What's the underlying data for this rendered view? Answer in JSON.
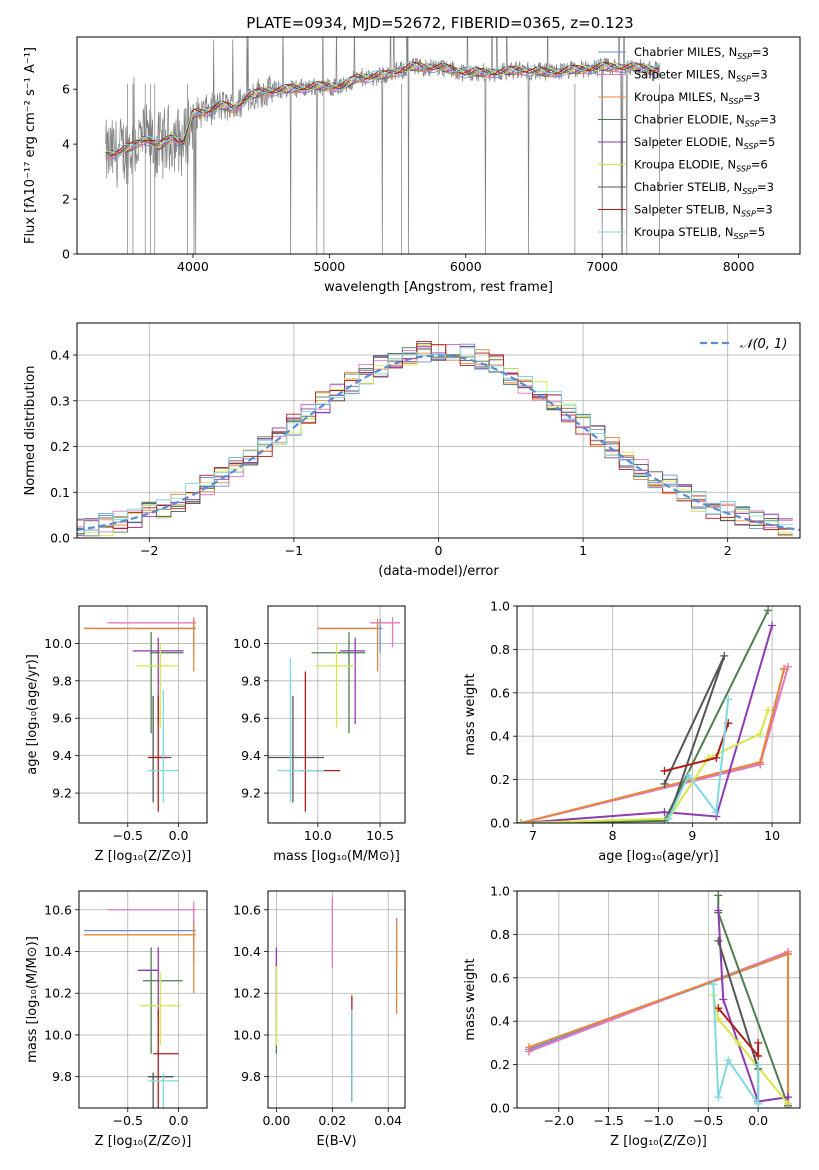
{
  "figure": {
    "title": "PLATE=0934, MJD=52672, FIBERID=0365, z=0.123"
  },
  "colors": {
    "Chabrier MILES": "#6b8fd6",
    "Salpeter MILES": "#e377c2",
    "Kroupa MILES": "#e6873a",
    "Chabrier ELODIE": "#4f7d4f",
    "Salpeter ELODIE": "#8e3ab0",
    "Kroupa ELODIE": "#d6e64a",
    "Chabrier STELIB": "#555555",
    "Salpeter STELIB": "#b01c1c",
    "Kroupa STELIB": "#7fd9e0",
    "data": "#7f7f7f",
    "gauss": "#5b8bd6"
  },
  "chart_data": [
    {
      "id": "spectrum",
      "type": "line",
      "title": "PLATE=0934, MJD=52672, FIBERID=0365, z=0.123",
      "xlabel": "wavelength [Angstrom, rest frame]",
      "ylabel": "Flux [fλ10⁻¹⁷ erg cm⁻² s⁻¹ A⁻¹]",
      "xlim": [
        3150,
        8450
      ],
      "ylim": [
        0,
        7.9
      ],
      "xticks": [
        4000,
        5000,
        6000,
        7000,
        8000
      ],
      "yticks": [
        0,
        2,
        4,
        6
      ],
      "legend_loc": "right",
      "legend": [
        "Chabrier MILES, N_SSP=3",
        "Salpeter MILES, N_SSP=3",
        "Kroupa MILES, N_SSP=3",
        "Chabrier ELODIE, N_SSP=3",
        "Salpeter ELODIE, N_SSP=5",
        "Kroupa ELODIE, N_SSP=6",
        "Chabrier STELIB, N_SSP=3",
        "Salpeter STELIB, N_SSP=3",
        "Kroupa STELIB, N_SSP=5"
      ],
      "continuum_x": [
        3360,
        3450,
        3550,
        3650,
        3750,
        3850,
        3930,
        4000,
        4100,
        4200,
        4300,
        4400,
        4500,
        4700,
        4900,
        5100,
        5200,
        5400,
        5600,
        5800,
        6000,
        6200,
        6400,
        6600,
        6800,
        7000,
        7200,
        7400
      ],
      "continuum_y": [
        3.6,
        3.7,
        3.9,
        4.2,
        3.9,
        4.3,
        4.0,
        5.1,
        5.2,
        5.4,
        5.3,
        5.7,
        5.9,
        6.0,
        6.1,
        6.1,
        6.4,
        6.5,
        6.8,
        6.8,
        6.6,
        6.6,
        6.7,
        6.6,
        6.7,
        6.8,
        6.8,
        6.7
      ]
    },
    {
      "id": "residuals",
      "type": "histogram",
      "xlabel": "(data-model)/error",
      "ylabel": "Normed distribution",
      "xlim": [
        -2.5,
        2.5
      ],
      "ylim": [
        0,
        0.47
      ],
      "xticks": [
        -2,
        -1,
        0,
        1,
        2
      ],
      "yticks": [
        0.0,
        0.1,
        0.2,
        0.3,
        0.4
      ],
      "grid": true,
      "legend_loc": "upper right",
      "gaussian_label": "𝒩(0, 1)"
    },
    {
      "id": "age-Z",
      "type": "errorbar",
      "xlabel": "Z [log₁₀(Z/Z⊙)]",
      "ylabel": "age  [log₁₀(age/yr)]",
      "xlim": [
        -0.98,
        0.28
      ],
      "ylim": [
        9.04,
        10.2
      ],
      "xticks": [
        -0.5,
        0.0
      ],
      "yticks": [
        9.2,
        9.4,
        9.6,
        9.8,
        10.0
      ],
      "grid": true,
      "points": [
        {
          "model": "Chabrier MILES",
          "x": 0.15,
          "y": 10.08,
          "x_lo": -0.93,
          "x_hi": 0.17,
          "y_lo": 9.95,
          "y_hi": 10.13
        },
        {
          "model": "Salpeter MILES",
          "x": 0.15,
          "y": 10.11,
          "x_lo": -0.7,
          "x_hi": 0.17,
          "y_lo": 9.98,
          "y_hi": 10.14
        },
        {
          "model": "Kroupa MILES",
          "x": 0.15,
          "y": 10.08,
          "x_lo": -0.93,
          "x_hi": 0.17,
          "y_lo": 9.85,
          "y_hi": 10.13
        },
        {
          "model": "Chabrier ELODIE",
          "x": -0.27,
          "y": 9.95,
          "x_lo": -0.28,
          "x_hi": 0.05,
          "y_lo": 9.52,
          "y_hi": 10.06
        },
        {
          "model": "Salpeter ELODIE",
          "x": -0.2,
          "y": 9.96,
          "x_lo": -0.45,
          "x_hi": 0.05,
          "y_lo": 9.57,
          "y_hi": 10.03
        },
        {
          "model": "Kroupa ELODIE",
          "x": -0.18,
          "y": 9.88,
          "x_lo": -0.42,
          "x_hi": 0.0,
          "y_lo": 9.55,
          "y_hi": 10.0
        },
        {
          "model": "Chabrier STELIB",
          "x": -0.25,
          "y": 9.39,
          "x_lo": -0.3,
          "x_hi": -0.07,
          "y_lo": 9.15,
          "y_hi": 9.72
        },
        {
          "model": "Salpeter STELIB",
          "x": -0.2,
          "y": 9.39,
          "x_lo": -0.3,
          "x_hi": -0.12,
          "y_lo": 9.1,
          "y_hi": 9.72
        },
        {
          "model": "Kroupa STELIB",
          "x": -0.15,
          "y": 9.32,
          "x_lo": -0.3,
          "x_hi": 0.0,
          "y_lo": 9.15,
          "y_hi": 9.75
        }
      ]
    },
    {
      "id": "age-mass",
      "type": "errorbar",
      "xlabel": "mass [log₁₀(M/M⊙)]",
      "ylabel": "",
      "xlim": [
        9.6,
        10.7
      ],
      "ylim": [
        9.04,
        10.2
      ],
      "xticks": [
        10.0,
        10.5
      ],
      "yticks": [
        9.2,
        9.4,
        9.6,
        9.8,
        10.0
      ],
      "grid": true,
      "points": [
        {
          "model": "Chabrier MILES",
          "x": 10.5,
          "y": 10.08,
          "x_lo": 10.0,
          "x_hi": 10.52,
          "y_lo": 9.95,
          "y_hi": 10.13
        },
        {
          "model": "Salpeter MILES",
          "x": 10.6,
          "y": 10.11,
          "x_lo": 10.42,
          "x_hi": 10.66,
          "y_lo": 9.98,
          "y_hi": 10.14
        },
        {
          "model": "Kroupa MILES",
          "x": 10.48,
          "y": 10.08,
          "x_lo": 10.0,
          "x_hi": 10.5,
          "y_lo": 9.85,
          "y_hi": 10.13
        },
        {
          "model": "Chabrier ELODIE",
          "x": 10.25,
          "y": 9.95,
          "x_lo": 9.95,
          "x_hi": 10.38,
          "y_lo": 9.52,
          "y_hi": 10.06
        },
        {
          "model": "Salpeter ELODIE",
          "x": 10.3,
          "y": 9.96,
          "x_lo": 10.18,
          "x_hi": 10.38,
          "y_lo": 9.57,
          "y_hi": 10.03
        },
        {
          "model": "Kroupa ELODIE",
          "x": 10.15,
          "y": 9.88,
          "x_lo": 9.98,
          "x_hi": 10.3,
          "y_lo": 9.55,
          "y_hi": 10.0
        },
        {
          "model": "Chabrier STELIB",
          "x": 9.8,
          "y": 9.39,
          "x_lo": 9.6,
          "x_hi": 10.05,
          "y_lo": 9.15,
          "y_hi": 9.72
        },
        {
          "model": "Salpeter STELIB",
          "x": 9.9,
          "y": 9.32,
          "x_lo": 9.85,
          "x_hi": 10.18,
          "y_lo": 9.1,
          "y_hi": 9.85
        },
        {
          "model": "Kroupa STELIB",
          "x": 9.78,
          "y": 9.32,
          "x_lo": 9.68,
          "x_hi": 10.05,
          "y_lo": 9.15,
          "y_hi": 9.92
        }
      ]
    },
    {
      "id": "mw-age",
      "type": "line",
      "xlabel": "age  [log₁₀(age/yr)]",
      "ylabel": "mass weight",
      "xlim": [
        6.8,
        10.35
      ],
      "ylim": [
        0,
        1.0
      ],
      "xticks": [
        7,
        8,
        9,
        10
      ],
      "yticks": [
        0.0,
        0.2,
        0.4,
        0.6,
        0.8,
        1.0
      ],
      "grid": true,
      "series": [
        {
          "model": "Chabrier MILES",
          "x": [
            6.85,
            9.85,
            10.15
          ],
          "y": [
            0.0,
            0.27,
            0.71
          ]
        },
        {
          "model": "Salpeter MILES",
          "x": [
            6.85,
            9.85,
            10.2
          ],
          "y": [
            0.0,
            0.27,
            0.72
          ]
        },
        {
          "model": "Kroupa MILES",
          "x": [
            6.85,
            9.85,
            10.15
          ],
          "y": [
            0.0,
            0.28,
            0.71
          ]
        },
        {
          "model": "Chabrier ELODIE",
          "x": [
            6.85,
            8.65,
            9.95
          ],
          "y": [
            0.0,
            0.01,
            0.98
          ]
        },
        {
          "model": "Salpeter ELODIE",
          "x": [
            6.85,
            8.65,
            9.3,
            10.0
          ],
          "y": [
            0.0,
            0.05,
            0.03,
            0.91
          ]
        },
        {
          "model": "Kroupa ELODIE",
          "x": [
            6.85,
            8.7,
            9.2,
            9.85,
            9.95
          ],
          "y": [
            0.0,
            0.02,
            0.3,
            0.41,
            0.52
          ]
        },
        {
          "model": "Chabrier STELIB",
          "x": [
            8.65,
            9.4,
            8.7
          ],
          "y": [
            0.18,
            0.77,
            0.02
          ]
        },
        {
          "model": "Salpeter STELIB",
          "x": [
            8.65,
            9.3,
            9.45
          ],
          "y": [
            0.24,
            0.3,
            0.46
          ]
        },
        {
          "model": "Kroupa STELIB",
          "x": [
            8.7,
            8.95,
            9.3,
            9.45
          ],
          "y": [
            0.02,
            0.22,
            0.05,
            0.57
          ]
        }
      ]
    },
    {
      "id": "mass-Z",
      "type": "errorbar",
      "xlabel": "Z [log₁₀(Z/Z⊙)]",
      "ylabel": "mass [log₁₀(M/M⊙)]",
      "xlim": [
        -0.98,
        0.28
      ],
      "ylim": [
        9.65,
        10.69
      ],
      "xticks": [
        -0.5,
        0.0
      ],
      "yticks": [
        9.8,
        10.0,
        10.2,
        10.4,
        10.6
      ],
      "grid": true,
      "points": [
        {
          "model": "Chabrier MILES",
          "x": 0.15,
          "y": 10.5,
          "x_lo": -0.93,
          "x_hi": 0.17,
          "y_lo": 10.35,
          "y_hi": 10.55
        },
        {
          "model": "Salpeter MILES",
          "x": 0.15,
          "y": 10.6,
          "x_lo": -0.7,
          "x_hi": 0.17,
          "y_lo": 10.4,
          "y_hi": 10.64
        },
        {
          "model": "Kroupa MILES",
          "x": 0.15,
          "y": 10.48,
          "x_lo": -0.93,
          "x_hi": 0.17,
          "y_lo": 10.2,
          "y_hi": 10.53
        },
        {
          "model": "Chabrier ELODIE",
          "x": -0.27,
          "y": 10.26,
          "x_lo": -0.35,
          "x_hi": 0.04,
          "y_lo": 9.91,
          "y_hi": 10.42
        },
        {
          "model": "Salpeter ELODIE",
          "x": -0.2,
          "y": 10.31,
          "x_lo": -0.4,
          "x_hi": -0.2,
          "y_lo": 10.08,
          "y_hi": 10.42
        },
        {
          "model": "Kroupa ELODIE",
          "x": -0.18,
          "y": 10.14,
          "x_lo": -0.38,
          "x_hi": 0.02,
          "y_lo": 9.95,
          "y_hi": 10.3
        },
        {
          "model": "Salpeter STELIB",
          "x": -0.2,
          "y": 9.91,
          "x_lo": -0.25,
          "x_hi": 0.0,
          "y_lo": 9.65,
          "y_hi": 10.12
        },
        {
          "model": "Chabrier STELIB",
          "x": -0.25,
          "y": 9.8,
          "x_lo": -0.3,
          "x_hi": -0.05,
          "y_lo": 9.65,
          "y_hi": 9.82
        },
        {
          "model": "Kroupa STELIB",
          "x": -0.15,
          "y": 9.78,
          "x_lo": -0.3,
          "x_hi": 0.0,
          "y_lo": 9.65,
          "y_hi": 9.82
        }
      ]
    },
    {
      "id": "mass-EBV",
      "type": "errorbar",
      "xlabel": "E(B-V)",
      "ylabel": "",
      "xlim": [
        -0.003,
        0.046
      ],
      "ylim": [
        9.65,
        10.69
      ],
      "xticks": [
        0.0,
        0.02,
        0.04
      ],
      "yticks": [
        9.8,
        10.0,
        10.2,
        10.4,
        10.6
      ],
      "grid": true,
      "points": [
        {
          "model": "Chabrier MILES",
          "x": 0.043,
          "y": 10.5,
          "y_lo": 10.35,
          "y_hi": 10.56
        },
        {
          "model": "Salpeter MILES",
          "x": 0.02,
          "y": 10.6,
          "y_lo": 10.32,
          "y_hi": 10.66
        },
        {
          "model": "Kroupa MILES",
          "x": 0.043,
          "y": 10.48,
          "y_lo": 10.1,
          "y_hi": 10.55
        },
        {
          "model": "Chabrier ELODIE",
          "x": 0.0,
          "y": 10.26,
          "y_lo": 9.91,
          "y_hi": 10.35
        },
        {
          "model": "Salpeter ELODIE",
          "x": 0.0,
          "y": 10.31,
          "y_lo": 10.08,
          "y_hi": 10.42
        },
        {
          "model": "Kroupa ELODIE",
          "x": 0.0,
          "y": 10.14,
          "y_lo": 9.95,
          "y_hi": 10.33
        },
        {
          "model": "Salpeter STELIB",
          "x": 0.027,
          "y": 9.91,
          "y_lo": 9.68,
          "y_hi": 10.19
        },
        {
          "model": "Chabrier STELIB",
          "x": 0.027,
          "y": 9.8,
          "y_lo": 9.68,
          "y_hi": 10.1
        },
        {
          "model": "Kroupa STELIB",
          "x": 0.027,
          "y": 9.78,
          "y_lo": 9.68,
          "y_hi": 10.12
        }
      ]
    },
    {
      "id": "mw-Z",
      "type": "line",
      "xlabel": "Z [log₁₀(Z/Z⊙)]",
      "ylabel": "mass weight",
      "xlim": [
        -2.42,
        0.42
      ],
      "ylim": [
        0,
        1.0
      ],
      "xticks": [
        -2.0,
        -1.5,
        -1.0,
        -0.5,
        0.0
      ],
      "yticks": [
        0.0,
        0.2,
        0.4,
        0.6,
        0.8,
        1.0
      ],
      "grid": true,
      "series": [
        {
          "model": "Chabrier MILES",
          "x": [
            -2.3,
            0.3,
            0.3
          ],
          "y": [
            0.27,
            0.71,
            0.02
          ]
        },
        {
          "model": "Salpeter MILES",
          "x": [
            -2.3,
            0.3,
            0.3
          ],
          "y": [
            0.26,
            0.72,
            0.0
          ]
        },
        {
          "model": "Kroupa MILES",
          "x": [
            -2.3,
            0.3,
            0.3
          ],
          "y": [
            0.28,
            0.71,
            0.01
          ]
        },
        {
          "model": "Chabrier ELODIE",
          "x": [
            -0.4,
            -0.4,
            0.3
          ],
          "y": [
            0.98,
            0.9,
            0.01
          ]
        },
        {
          "model": "Salpeter ELODIE",
          "x": [
            -0.4,
            -0.35,
            0.0,
            0.3,
            0.3
          ],
          "y": [
            0.91,
            0.5,
            0.03,
            0.05,
            0.0
          ]
        },
        {
          "model": "Kroupa ELODIE",
          "x": [
            -0.45,
            -0.4,
            -0.2,
            0.3
          ],
          "y": [
            0.52,
            0.41,
            0.3,
            0.02
          ]
        },
        {
          "model": "Chabrier STELIB",
          "x": [
            -0.4,
            0.0,
            0.0
          ],
          "y": [
            0.77,
            0.18,
            0.02
          ]
        },
        {
          "model": "Salpeter STELIB",
          "x": [
            -0.4,
            0.0,
            0.0
          ],
          "y": [
            0.46,
            0.24,
            0.3
          ]
        },
        {
          "model": "Kroupa STELIB",
          "x": [
            -0.45,
            -0.4,
            -0.3,
            0.0,
            0.0
          ],
          "y": [
            0.57,
            0.05,
            0.22,
            0.02,
            0.2
          ]
        }
      ]
    }
  ]
}
